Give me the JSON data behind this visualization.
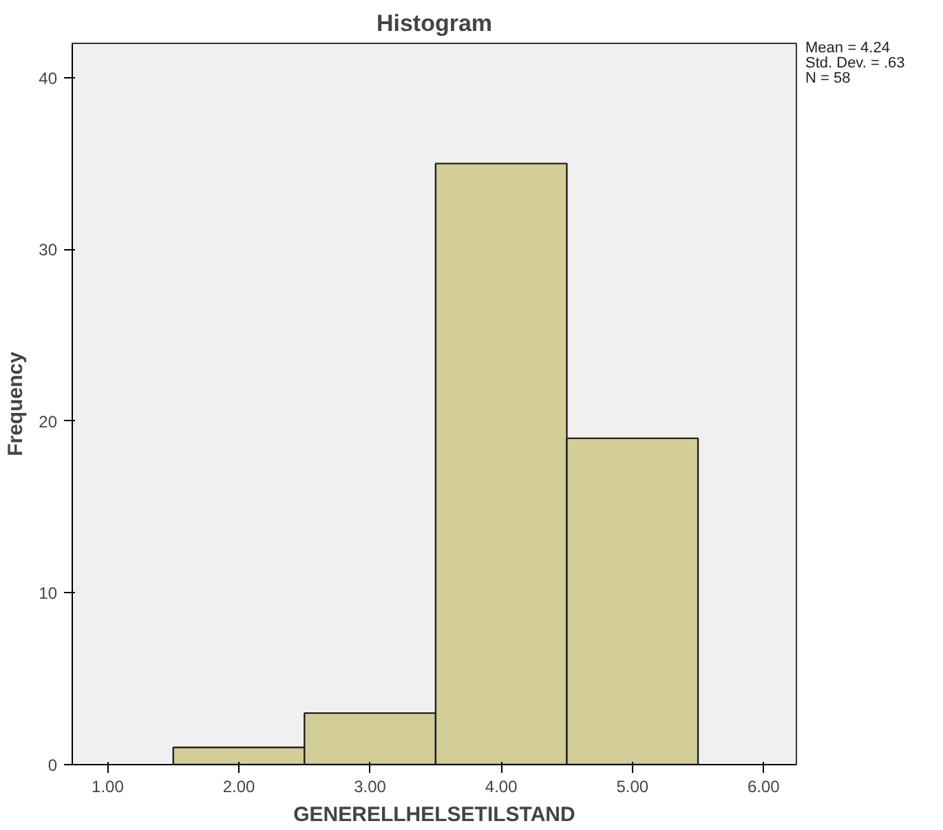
{
  "chart_data": {
    "type": "histogram",
    "title": "Histogram",
    "xlabel": "GENERELLHELSETILSTAND",
    "ylabel": "Frequency",
    "bins": [
      1.5,
      2.5,
      3.5,
      4.5,
      5.5
    ],
    "values": [
      1,
      3,
      35,
      19
    ],
    "color": "#d3ce97",
    "xlim": [
      0.73,
      6.25
    ],
    "ylim": [
      0,
      42
    ],
    "xticks": [
      {
        "value": 1,
        "label": "1.00"
      },
      {
        "value": 2,
        "label": "2.00"
      },
      {
        "value": 3,
        "label": "3.00"
      },
      {
        "value": 4,
        "label": "4.00"
      },
      {
        "value": 5,
        "label": "5.00"
      },
      {
        "value": 6,
        "label": "6.00"
      }
    ],
    "yticks": [
      0,
      10,
      20,
      30,
      40
    ],
    "grid": false,
    "annotations": [
      "Mean = 4.24",
      "Std. Dev. = .63",
      "N = 58"
    ]
  }
}
